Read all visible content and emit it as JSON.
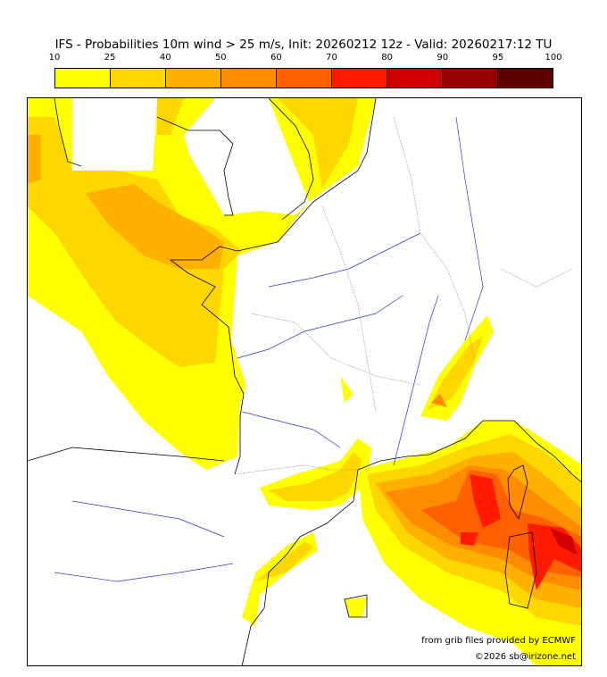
{
  "title": "IFS - Probabilities 10m wind > 25 m/s, Init: 20260212 12z - Valid: 20260217:12 TU",
  "colorbar": {
    "ticks": [
      "10",
      "25",
      "40",
      "50",
      "60",
      "70",
      "80",
      "90",
      "95",
      "100"
    ],
    "colors": [
      "#ffff00",
      "#ffd700",
      "#ffb000",
      "#ff8c00",
      "#ff6000",
      "#ff1a00",
      "#d00000",
      "#990000",
      "#600000"
    ]
  },
  "credits": {
    "source": "from grib files provided by ECMWF",
    "copyright": "©2026 sb@irizone.net"
  },
  "colors": {
    "land_outline": "#000000",
    "rivers": "#3030e0",
    "borders": "#999999"
  }
}
